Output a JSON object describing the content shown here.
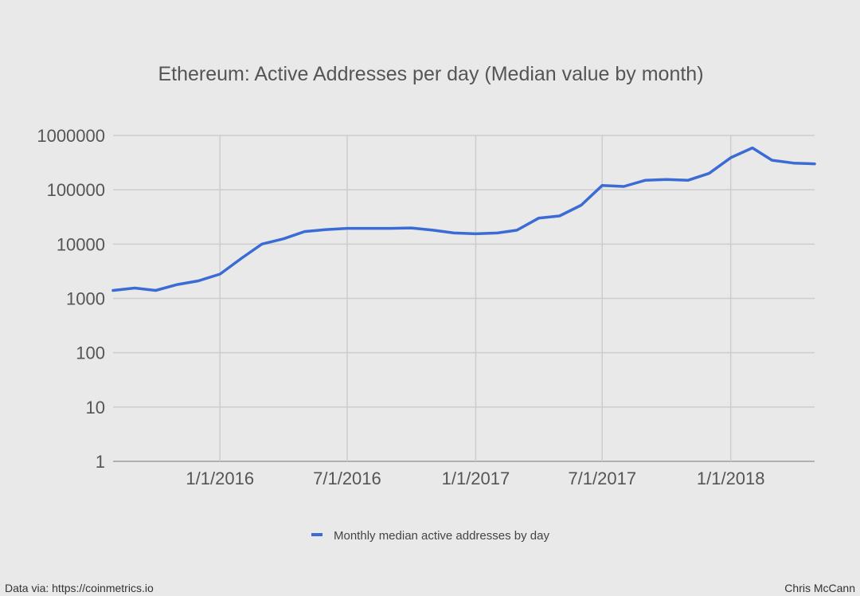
{
  "chart_data": {
    "type": "line",
    "title": "Ethereum: Active Addresses per day (Median value by month)",
    "y_scale": "log",
    "ylim": [
      1,
      1000000
    ],
    "y_ticks": [
      1,
      10,
      100,
      1000,
      10000,
      100000,
      1000000
    ],
    "y_tick_labels": [
      "1",
      "10",
      "100",
      "1000",
      "10000",
      "100000",
      "1000000"
    ],
    "x_ticks": [
      "2016-01-01",
      "2016-07-01",
      "2017-01-01",
      "2017-07-01",
      "2018-01-01"
    ],
    "x_tick_labels": [
      "1/1/2016",
      "7/1/2016",
      "1/1/2017",
      "7/1/2017",
      "1/1/2018"
    ],
    "xlim": [
      "2015-08-01",
      "2018-05-01"
    ],
    "vertical_grid": true,
    "horizontal_grid": true,
    "legend_position": "bottom",
    "series": [
      {
        "name": "Monthly median active addresses by day",
        "color": "#3b6bd4",
        "x": [
          "2015-08-01",
          "2015-09-01",
          "2015-10-01",
          "2015-11-01",
          "2015-12-01",
          "2016-01-01",
          "2016-02-01",
          "2016-03-01",
          "2016-04-01",
          "2016-05-01",
          "2016-06-01",
          "2016-07-01",
          "2016-08-01",
          "2016-09-01",
          "2016-10-01",
          "2016-11-01",
          "2016-12-01",
          "2017-01-01",
          "2017-02-01",
          "2017-03-01",
          "2017-04-01",
          "2017-05-01",
          "2017-06-01",
          "2017-07-01",
          "2017-08-01",
          "2017-09-01",
          "2017-10-01",
          "2017-11-01",
          "2017-12-01",
          "2018-01-01",
          "2018-02-01",
          "2018-03-01",
          "2018-04-01",
          "2018-05-01"
        ],
        "y": [
          1400,
          1550,
          1400,
          1800,
          2100,
          2800,
          5500,
          10000,
          12500,
          17000,
          18500,
          19500,
          19500,
          19500,
          19800,
          18000,
          16000,
          15500,
          16000,
          18000,
          30000,
          33000,
          52000,
          120000,
          115000,
          150000,
          155000,
          150000,
          200000,
          390000,
          590000,
          350000,
          310000,
          300000
        ]
      }
    ]
  },
  "footer": {
    "left": "Data via: https://coinmetrics.io",
    "right": "Chris McCann"
  }
}
